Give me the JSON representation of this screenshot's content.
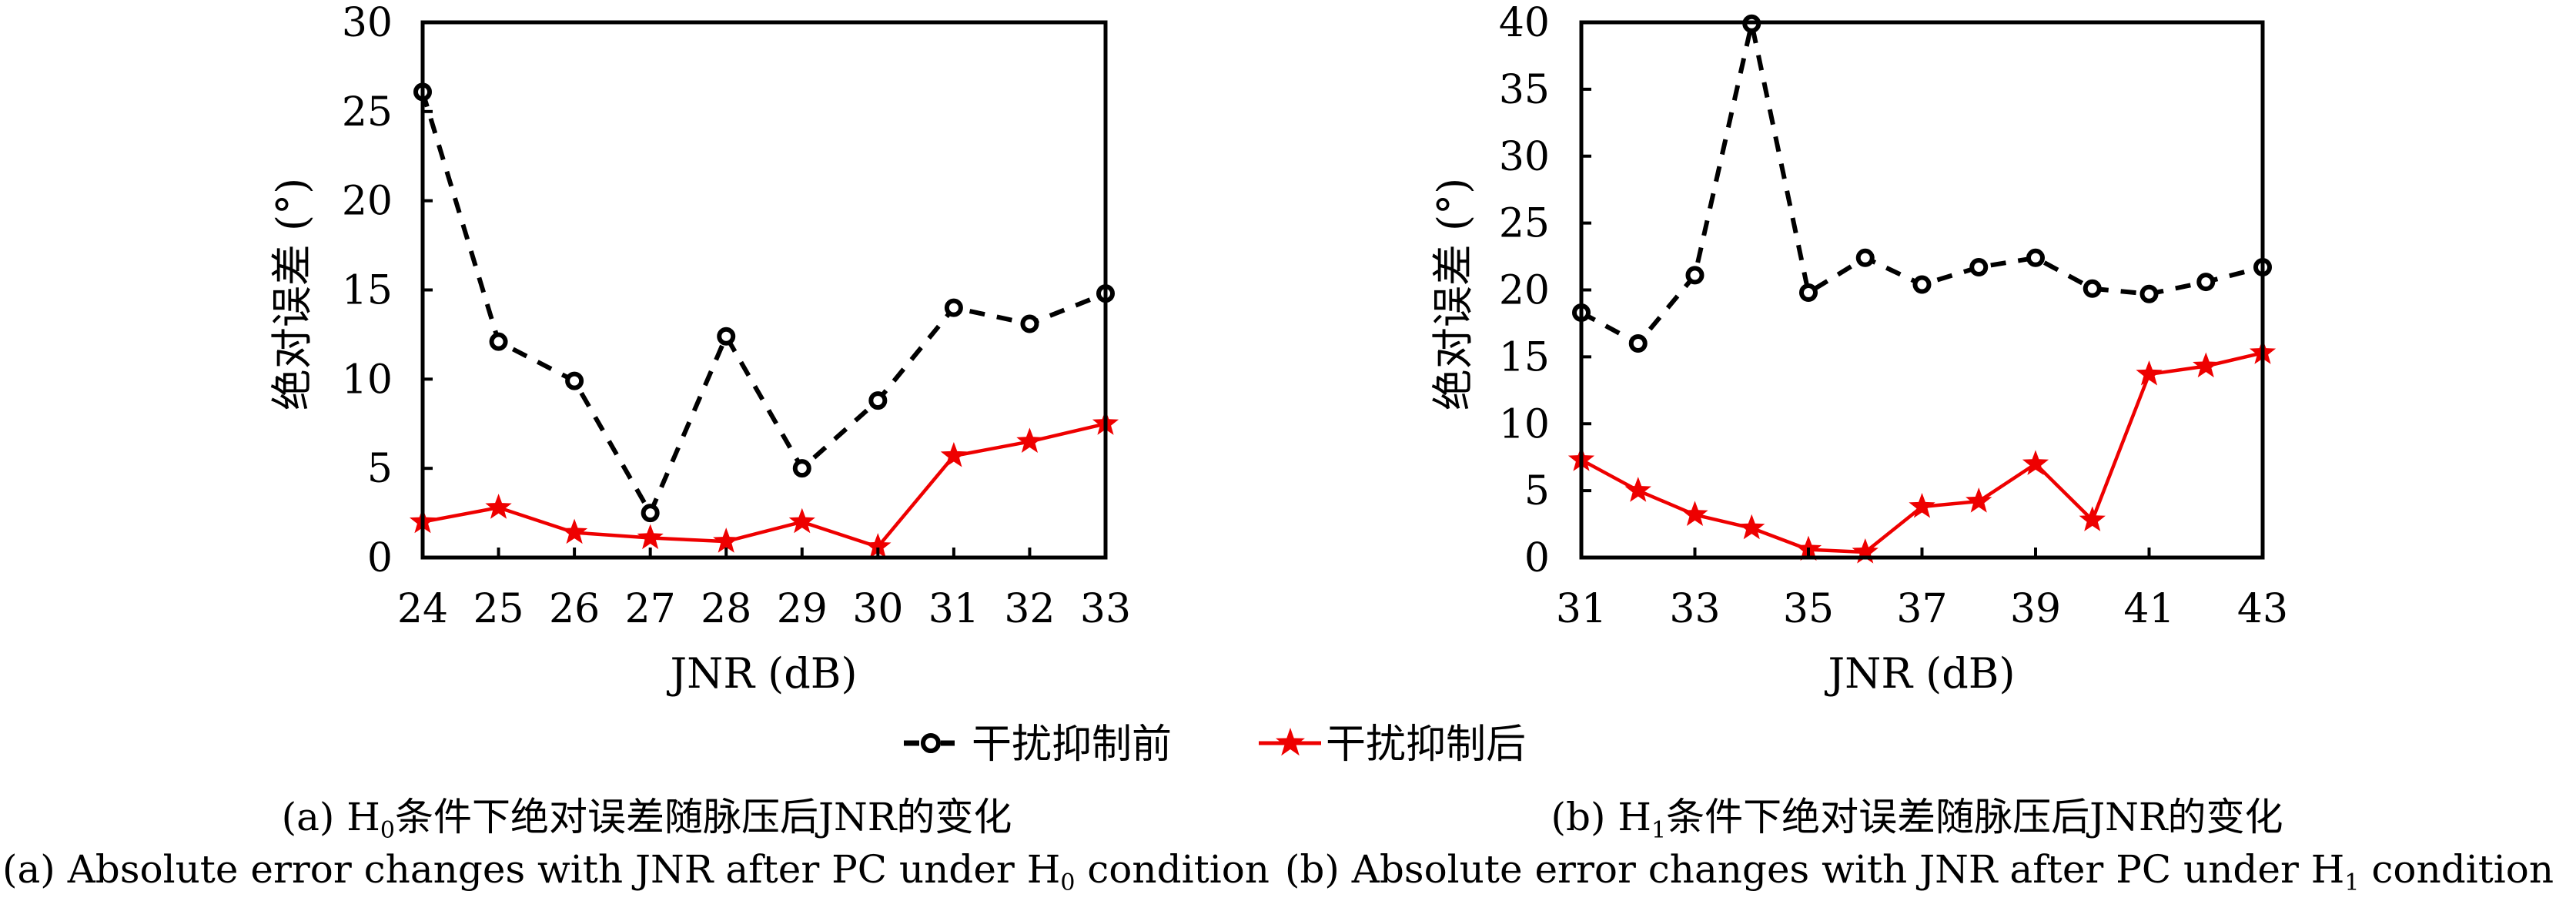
{
  "legend": {
    "items": [
      {
        "label": "干扰抑制前",
        "color": "#000000",
        "marker": "circle-open",
        "line": "dashed"
      },
      {
        "label": "干扰抑制后",
        "color": "#ee0000",
        "marker": "star",
        "line": "solid"
      }
    ]
  },
  "captions": {
    "a_cn_prefix": "(a) H",
    "a_cn_sub": "0",
    "a_cn_suffix": "条件下绝对误差随脉压后JNR的变化",
    "a_en_prefix": "(a) Absolute error changes with JNR after PC under H",
    "a_en_sub": "0",
    "a_en_suffix": " condition",
    "b_cn_prefix": "(b) H",
    "b_cn_sub": "1",
    "b_cn_suffix": "条件下绝对误差随脉压后JNR的变化",
    "b_en_prefix": "(b) Absolute error changes with JNR after PC under H",
    "b_en_sub": "1",
    "b_en_suffix": " condition"
  },
  "chart_data": [
    {
      "type": "line",
      "title": "(a) H0条件下绝对误差随脉压后JNR的变化",
      "xlabel": "JNR (dB)",
      "ylabel": "绝对误差 (°)",
      "xlim": [
        24,
        33
      ],
      "ylim": [
        0,
        30
      ],
      "xticks": [
        24,
        25,
        26,
        27,
        28,
        29,
        30,
        31,
        32,
        33
      ],
      "yticks": [
        0,
        5,
        10,
        15,
        20,
        25,
        30
      ],
      "grid": false,
      "legend_position": "bottom-center",
      "x": [
        24,
        25,
        26,
        27,
        28,
        29,
        30,
        31,
        32,
        33
      ],
      "series": [
        {
          "name": "干扰抑制前",
          "values": [
            26.1,
            12.1,
            9.9,
            2.5,
            12.4,
            5.0,
            8.8,
            14.0,
            13.1,
            14.8
          ]
        },
        {
          "name": "干扰抑制后",
          "values": [
            2.0,
            2.8,
            1.4,
            1.1,
            0.9,
            2.0,
            0.6,
            5.7,
            6.5,
            7.5
          ]
        }
      ]
    },
    {
      "type": "line",
      "title": "(b) H1条件下绝对误差随脉压后JNR的变化",
      "xlabel": "JNR (dB)",
      "ylabel": "绝对误差 (°)",
      "xlim": [
        31,
        43
      ],
      "ylim": [
        0,
        40
      ],
      "xticks": [
        31,
        33,
        35,
        37,
        39,
        41,
        43
      ],
      "yticks": [
        0,
        5,
        10,
        15,
        20,
        25,
        30,
        35,
        40
      ],
      "grid": false,
      "legend_position": "bottom-center",
      "x": [
        31,
        32,
        33,
        34,
        35,
        36,
        37,
        38,
        39,
        40,
        41,
        42,
        43
      ],
      "series": [
        {
          "name": "干扰抑制前",
          "values": [
            18.3,
            16.0,
            21.1,
            39.9,
            19.8,
            22.4,
            20.4,
            21.7,
            22.4,
            20.1,
            19.7,
            20.6,
            21.7
          ]
        },
        {
          "name": "干扰抑制后",
          "values": [
            7.3,
            5.0,
            3.2,
            2.2,
            0.6,
            0.4,
            3.8,
            4.2,
            7.0,
            2.8,
            13.7,
            14.3,
            15.3
          ]
        }
      ]
    }
  ]
}
